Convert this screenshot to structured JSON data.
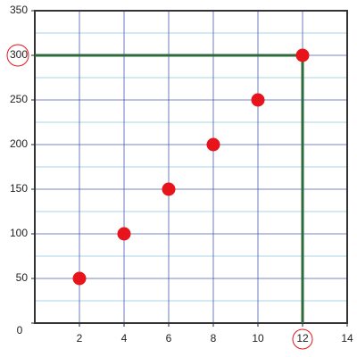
{
  "chart_data": {
    "type": "scatter",
    "x": [
      2,
      4,
      6,
      8,
      10,
      12
    ],
    "y": [
      50,
      100,
      150,
      200,
      250,
      300
    ],
    "color": "#e8141b",
    "xlim": [
      0,
      14
    ],
    "xticks": [
      2,
      4,
      6,
      8,
      10,
      12,
      14
    ],
    "ylim": [
      0,
      350
    ],
    "yticks": [
      0,
      50,
      100,
      150,
      200,
      250,
      300,
      350
    ],
    "minor_yticks": [
      25,
      75,
      125,
      175,
      225,
      275,
      325
    ],
    "grid": true,
    "grid_color": "#4a5bb0",
    "minor_grid_color": "#a9d3e6",
    "highlight": {
      "x": 12,
      "y": 300,
      "color": "#2e6b3a",
      "ring_color": "#e8141b"
    }
  }
}
